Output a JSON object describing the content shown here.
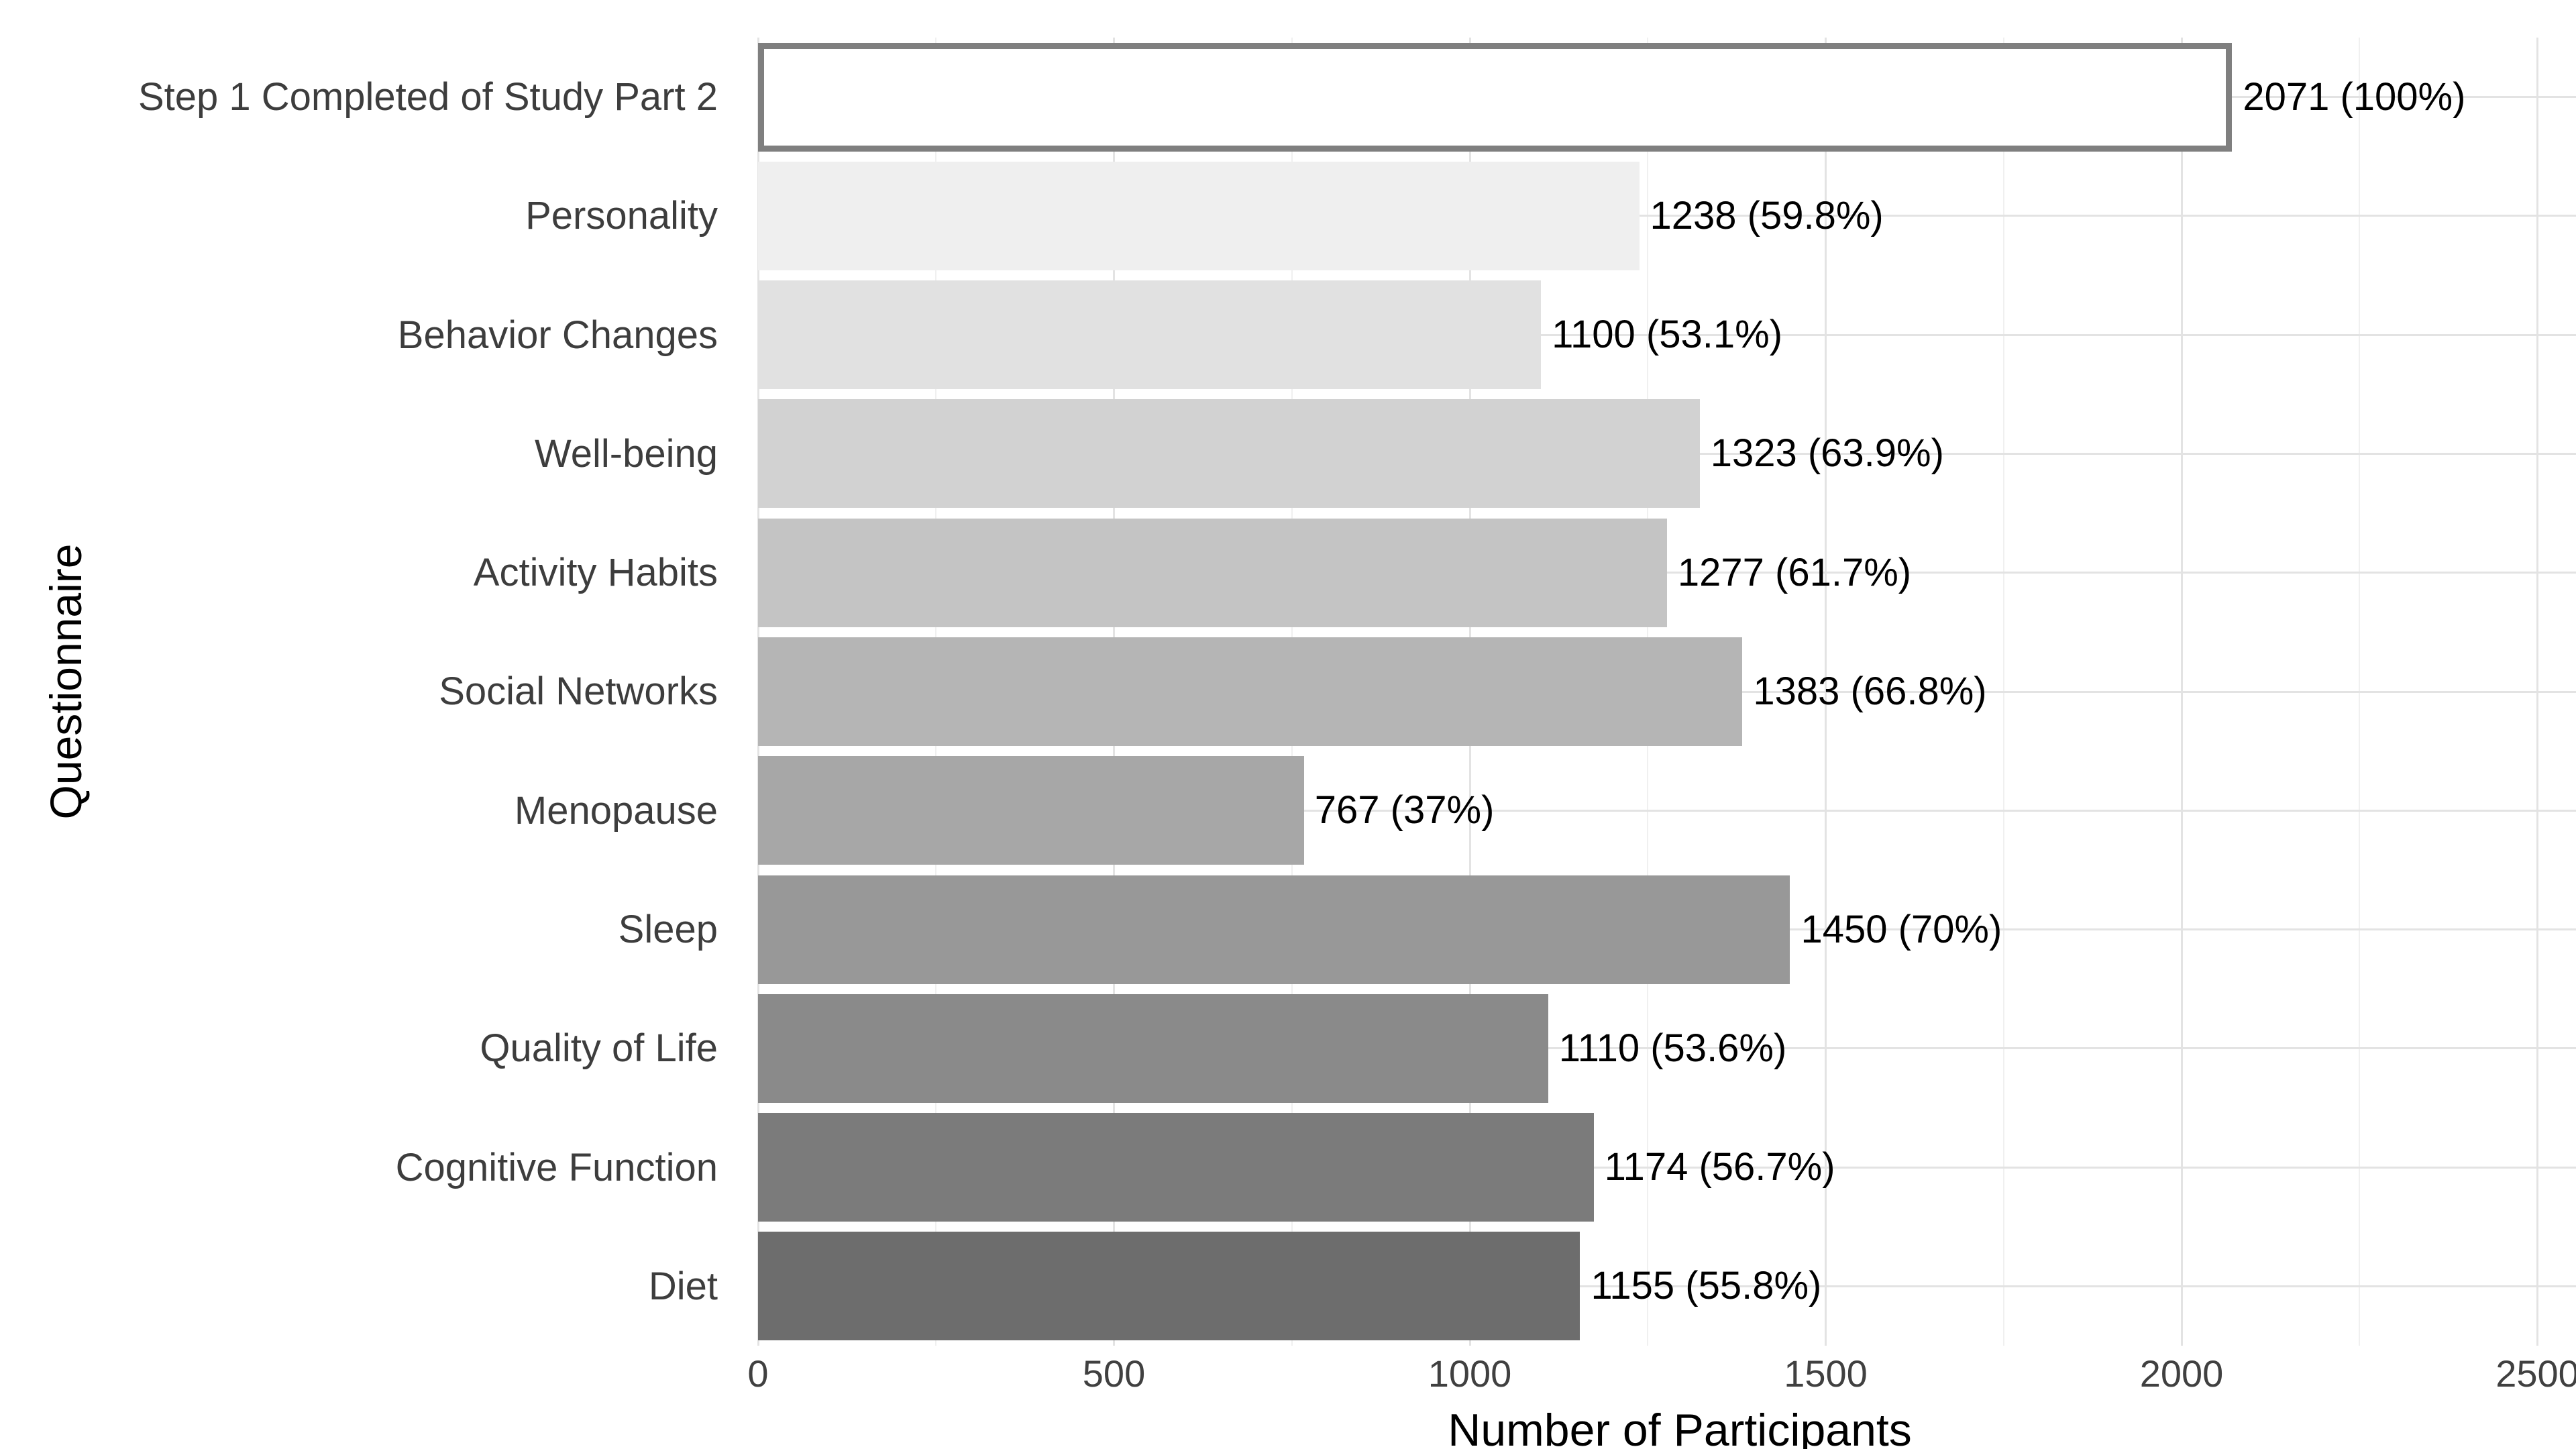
{
  "chart_data": {
    "type": "bar",
    "orientation": "horizontal",
    "title": "",
    "xlabel": "Number of Participants",
    "ylabel": "Questionnaire",
    "categories": [
      "Step 1 Completed of Study Part 2",
      "Personality",
      "Behavior Changes",
      "Well-being",
      "Activity Habits",
      "Social Networks",
      "Menopause",
      "Sleep",
      "Quality of Life",
      "Cognitive Function",
      "Diet"
    ],
    "values": [
      2071,
      1238,
      1100,
      1323,
      1277,
      1383,
      767,
      1450,
      1110,
      1174,
      1155
    ],
    "value_labels": [
      "2071 (100%)",
      "1238 (59.8%)",
      "1100 (53.1%)",
      "1323 (63.9%)",
      "1277 (61.7%)",
      "1383 (66.8%)",
      "767 (37%)",
      "1450 (70%)",
      "1110 (53.6%)",
      "1174 (56.7%)",
      "1155 (55.8%)"
    ],
    "bar_fills": [
      "#FFFFFF",
      "#EFEFEF",
      "#E1E1E1",
      "#D2D2D2",
      "#C4C4C4",
      "#B5B5B5",
      "#A7A7A7",
      "#989898",
      "#8A8A8A",
      "#7B7B7B",
      "#6D6D6D"
    ],
    "highlight_index": 0,
    "highlight_border_color": "#7F7F7F",
    "xlim": [
      0,
      2590
    ],
    "x_major_ticks": [
      0,
      500,
      1000,
      1500,
      2000,
      2500
    ],
    "x_tick_labels": [
      "0",
      "500",
      "1000",
      "1500",
      "2000",
      "2500"
    ],
    "x_minor_ticks": [
      250,
      750,
      1250,
      1750,
      2250
    ],
    "grid": {
      "major_color": "#E3E3E3",
      "minor_color": "#F0F0F0",
      "horizontal_rows": true
    },
    "legend_position": "none",
    "background": "#FFFFFF"
  }
}
